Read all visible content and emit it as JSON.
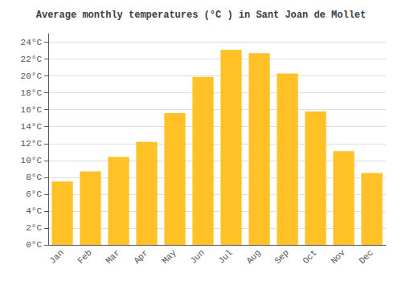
{
  "chart_data": {
    "type": "bar",
    "title": "Average monthly temperatures (°C ) in Sant Joan de Mollet",
    "categories": [
      "Jan",
      "Feb",
      "Mar",
      "Apr",
      "May",
      "Jun",
      "Jul",
      "Aug",
      "Sep",
      "Oct",
      "Nov",
      "Dec"
    ],
    "values": [
      7.5,
      8.7,
      10.4,
      12.2,
      15.6,
      19.9,
      23.1,
      22.7,
      20.3,
      15.8,
      11.1,
      8.5
    ],
    "color": "#FFC125",
    "ylim": [
      0,
      25
    ],
    "yticks": [
      {
        "value": 0,
        "label": "0°C"
      },
      {
        "value": 2,
        "label": "2°C"
      },
      {
        "value": 4,
        "label": "4°C"
      },
      {
        "value": 6,
        "label": "6°C"
      },
      {
        "value": 8,
        "label": "8°C"
      },
      {
        "value": 10,
        "label": "10°C"
      },
      {
        "value": 12,
        "label": "12°C"
      },
      {
        "value": 14,
        "label": "14°C"
      },
      {
        "value": 16,
        "label": "16°C"
      },
      {
        "value": 18,
        "label": "18°C"
      },
      {
        "value": 20,
        "label": "20°C"
      },
      {
        "value": 22,
        "label": "22°C"
      },
      {
        "value": 24,
        "label": "24°C"
      }
    ],
    "grid": true
  }
}
